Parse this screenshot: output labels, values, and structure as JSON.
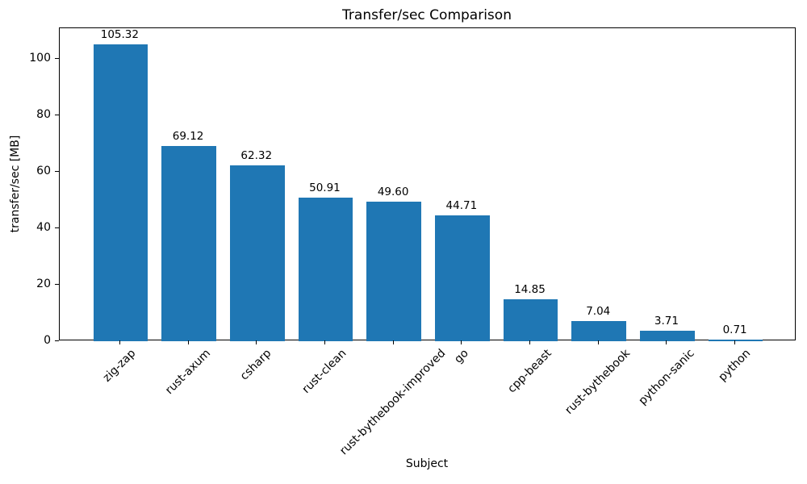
{
  "chart_data": {
    "type": "bar",
    "title": "Transfer/sec Comparison",
    "xlabel": "Subject",
    "ylabel": "transfer/sec [MB]",
    "categories": [
      "zig-zap",
      "rust-axum",
      "csharp",
      "rust-clean",
      "rust-bythebook-improved",
      "go",
      "cpp-beast",
      "rust-bythebook",
      "python-sanic",
      "python"
    ],
    "values": [
      105.32,
      69.12,
      62.32,
      50.91,
      49.6,
      44.71,
      14.85,
      7.04,
      3.71,
      0.71
    ],
    "value_labels": [
      "105.32",
      "69.12",
      "62.32",
      "50.91",
      "49.60",
      "44.71",
      "14.85",
      "7.04",
      "3.71",
      "0.71"
    ],
    "yticks": [
      0,
      20,
      40,
      60,
      80,
      100
    ],
    "ylim": [
      0,
      111
    ],
    "bar_color": "#1f77b4",
    "text_color": "#000000",
    "background_color": "#ffffff",
    "grid": false,
    "legend": "none",
    "xtick_rotation_deg": 45
  }
}
